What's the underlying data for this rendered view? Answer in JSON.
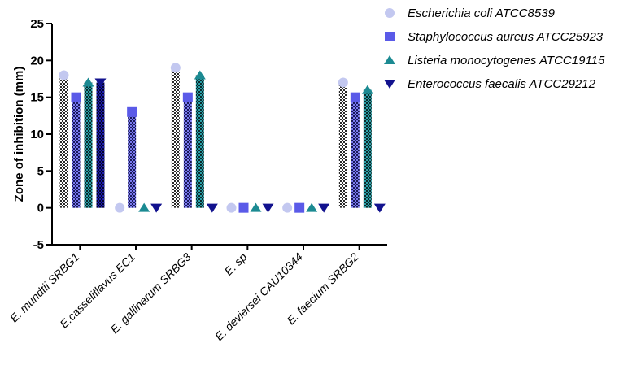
{
  "chart_data": {
    "type": "bar",
    "title": "",
    "xlabel": "",
    "ylabel": "Zone of inhibition (mm)",
    "ylim": [
      -5,
      25
    ],
    "yticks": [
      -5,
      0,
      5,
      10,
      15,
      20,
      25
    ],
    "categories": [
      "E. mundtii SRBG1",
      "E.casseliflavus EC1",
      "E. gallinarum SRBG3",
      "E. sp",
      "E. deviersei CAU10344",
      "E. faecium SRBG2"
    ],
    "legend_position": "top-right",
    "grid": false,
    "series": [
      {
        "name": "Escherichia coli ATCC8539",
        "marker": "circle",
        "color": "#c3c8f0",
        "values": [
          18,
          0,
          19,
          0,
          0,
          17
        ]
      },
      {
        "name": "Staphylococcus aureus ATCC25923",
        "marker": "square",
        "color": "#5a5ae8",
        "values": [
          15,
          13,
          15,
          0,
          0,
          15
        ]
      },
      {
        "name": "Listeria monocytogenes ATCC19115",
        "marker": "triangle-up",
        "color": "#1b8a92",
        "values": [
          17,
          0,
          18,
          0,
          0,
          16
        ]
      },
      {
        "name": "Enterococcus faecalis ATCC29212",
        "marker": "triangle-down",
        "color": "#12128e",
        "values": [
          17,
          0,
          0,
          0,
          0,
          0
        ]
      }
    ]
  }
}
